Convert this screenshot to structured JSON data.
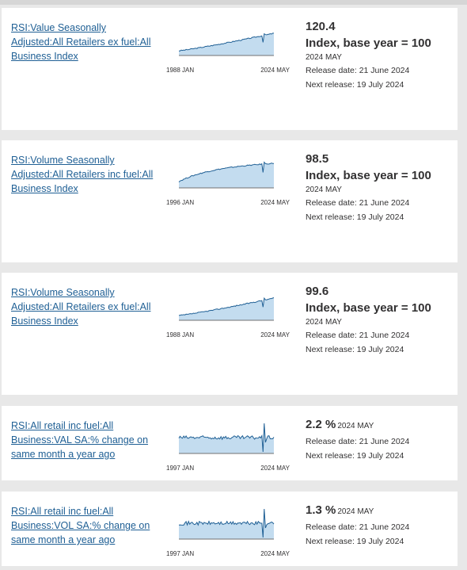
{
  "series": [
    {
      "title": "RSI:Value Seasonally Adjusted:All Retailers ex fuel:All Business Index",
      "value": "120.4",
      "unit": "Index, base year = 100",
      "period": "2024 MAY",
      "release_date": "Release date: 21 June 2024",
      "next_release": "Next release: 19 July 2024",
      "chart_start": "1988 JAN",
      "chart_end": "2024 MAY",
      "chart_shape": "rising-index"
    },
    {
      "title": "RSI:Volume Seasonally Adjusted:All Retailers inc fuel:All Business Index",
      "value": "98.5",
      "unit": "Index, base year = 100",
      "period": "2024 MAY",
      "release_date": "Release date: 21 June 2024",
      "next_release": "Next release: 19 July 2024",
      "chart_start": "1996 JAN",
      "chart_end": "2024 MAY",
      "chart_shape": "plateau-index"
    },
    {
      "title": "RSI:Volume Seasonally Adjusted:All Retailers ex fuel:All Business Index",
      "value": "99.6",
      "unit": "Index, base year = 100",
      "period": "2024 MAY",
      "release_date": "Release date: 21 June 2024",
      "next_release": "Next release: 19 July 2024",
      "chart_start": "1988 JAN",
      "chart_end": "2024 MAY",
      "chart_shape": "rising-index"
    },
    {
      "title": "RSI:All retail inc fuel:All Business:VAL SA:% change on same month a year ago",
      "value": "2.2 %",
      "unit": "",
      "period": "2024 MAY",
      "release_date": "Release date: 21 June 2024",
      "next_release": "Next release: 19 July 2024",
      "chart_start": "1997 JAN",
      "chart_end": "2024 MAY",
      "chart_shape": "volatile-percent"
    },
    {
      "title": "RSI:All retail inc fuel:All Business:VOL SA:% change on same month a year ago",
      "value": "1.3 %",
      "unit": "",
      "period": "2024 MAY",
      "release_date": "Release date: 21 June 2024",
      "next_release": "Next release: 19 July 2024",
      "chart_start": "1997 JAN",
      "chart_end": "2024 MAY",
      "chart_shape": "volatile-percent"
    }
  ],
  "colors": {
    "link": "#206095",
    "spark_line": "#206095",
    "spark_fill": "#c3dcef",
    "card_bg": "#ffffff",
    "page_bg": "#e8e8e8"
  }
}
